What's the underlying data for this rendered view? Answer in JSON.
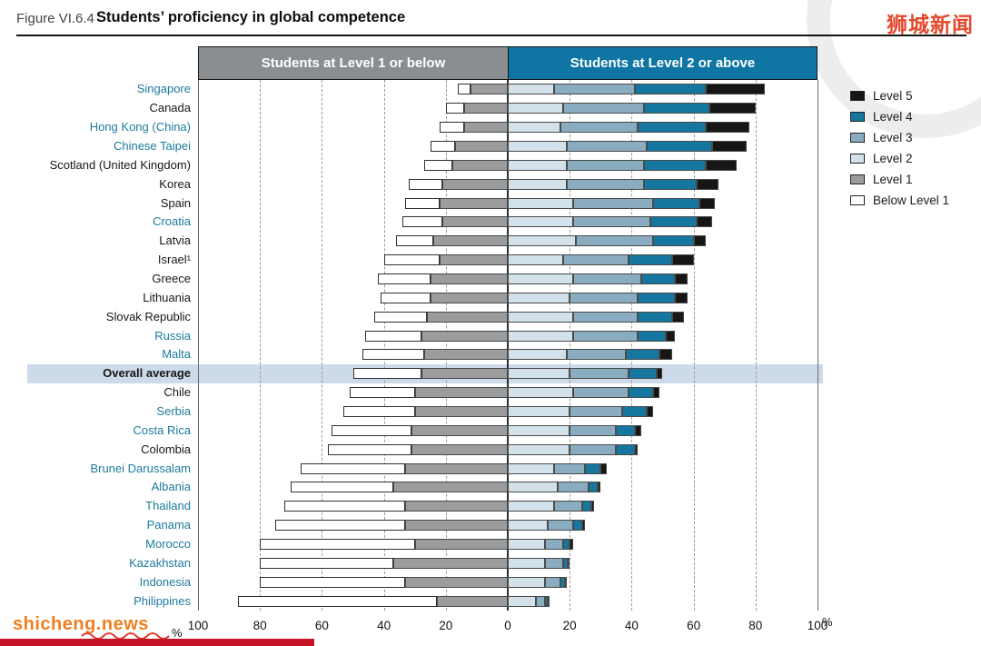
{
  "figure": {
    "label": "Figure VI.6.4",
    "title": "Students’ proficiency in global competence"
  },
  "headers": {
    "left": "Students at Level 1 or below",
    "right": "Students at Level 2 or above"
  },
  "legend": [
    {
      "label": "Level 5",
      "color_key": "level_5"
    },
    {
      "label": "Level 4",
      "color_key": "level_4"
    },
    {
      "label": "Level 3",
      "color_key": "level_3"
    },
    {
      "label": "Level 2",
      "color_key": "level_2"
    },
    {
      "label": "Level 1",
      "color_key": "level_1"
    },
    {
      "label": "Below Level 1",
      "color_key": "below_level_1"
    }
  ],
  "axis": {
    "ticks": [
      100,
      80,
      60,
      40,
      20,
      0,
      20,
      40,
      60,
      80,
      100
    ],
    "percent": "%",
    "range": [
      -100,
      100
    ]
  },
  "watermarks": {
    "top_right": "狮城新闻",
    "bottom_left": "shicheng.news"
  },
  "colors": {
    "level_5": "#161616",
    "level_4": "#15779f",
    "level_3": "#8aacc1",
    "level_2": "#d3e1eb",
    "level_1": "#9a9c9e",
    "below_level_1": "#ffffff",
    "header_left_bg": "#8b8e91",
    "header_right_bg": "#0f76a4",
    "accent_label": "#1c7b9c",
    "highlight_band": "#ccdae9",
    "watermark_red": "#e2492c",
    "watermark_orange": "#ef7f1f",
    "bottom_bar_red": "#c41425"
  },
  "chart_data": {
    "type": "bar",
    "stacked": true,
    "diverging": true,
    "unit": "%",
    "title": "Students’ proficiency in global competence",
    "xlabel": "%",
    "xlim": [
      -100,
      100
    ],
    "series_order": [
      "below_l1",
      "l1",
      "l2",
      "l3",
      "l4",
      "l5"
    ],
    "series_names": [
      "Below Level 1",
      "Level 1",
      "Level 2",
      "Level 3",
      "Level 4",
      "Level 5"
    ],
    "countries": [
      {
        "name": "Singapore",
        "accent": true,
        "below_l1": 4,
        "l1": 12,
        "l2": 15,
        "l3": 26,
        "l4": 23,
        "l5": 19
      },
      {
        "name": "Canada",
        "accent": false,
        "below_l1": 6,
        "l1": 14,
        "l2": 18,
        "l3": 26,
        "l4": 21,
        "l5": 15
      },
      {
        "name": "Hong Kong (China)",
        "accent": true,
        "below_l1": 8,
        "l1": 14,
        "l2": 17,
        "l3": 25,
        "l4": 22,
        "l5": 14
      },
      {
        "name": "Chinese Taipei",
        "accent": true,
        "below_l1": 8,
        "l1": 17,
        "l2": 19,
        "l3": 26,
        "l4": 21,
        "l5": 11
      },
      {
        "name": "Scotland (United Kingdom)",
        "accent": false,
        "below_l1": 9,
        "l1": 18,
        "l2": 19,
        "l3": 25,
        "l4": 20,
        "l5": 10
      },
      {
        "name": "Korea",
        "accent": false,
        "below_l1": 11,
        "l1": 21,
        "l2": 19,
        "l3": 25,
        "l4": 17,
        "l5": 7
      },
      {
        "name": "Spain",
        "accent": false,
        "below_l1": 11,
        "l1": 22,
        "l2": 21,
        "l3": 26,
        "l4": 15,
        "l5": 5
      },
      {
        "name": "Croatia",
        "accent": true,
        "below_l1": 13,
        "l1": 21,
        "l2": 21,
        "l3": 25,
        "l4": 15,
        "l5": 5
      },
      {
        "name": "Latvia",
        "accent": false,
        "below_l1": 12,
        "l1": 24,
        "l2": 22,
        "l3": 25,
        "l4": 13,
        "l5": 4
      },
      {
        "name": "Israel¹",
        "accent": false,
        "below_l1": 18,
        "l1": 22,
        "l2": 18,
        "l3": 21,
        "l4": 14,
        "l5": 7
      },
      {
        "name": "Greece",
        "accent": false,
        "below_l1": 17,
        "l1": 25,
        "l2": 21,
        "l3": 22,
        "l4": 11,
        "l5": 4
      },
      {
        "name": "Lithuania",
        "accent": false,
        "below_l1": 16,
        "l1": 25,
        "l2": 20,
        "l3": 22,
        "l4": 12,
        "l5": 4
      },
      {
        "name": "Slovak Republic",
        "accent": false,
        "below_l1": 17,
        "l1": 26,
        "l2": 21,
        "l3": 21,
        "l4": 11,
        "l5": 4
      },
      {
        "name": "Russia",
        "accent": true,
        "below_l1": 18,
        "l1": 28,
        "l2": 21,
        "l3": 21,
        "l4": 9,
        "l5": 3
      },
      {
        "name": "Malta",
        "accent": true,
        "below_l1": 20,
        "l1": 27,
        "l2": 19,
        "l3": 19,
        "l4": 11,
        "l5": 4
      },
      {
        "name": "Overall average",
        "accent": false,
        "bold": true,
        "highlight": true,
        "below_l1": 22,
        "l1": 28,
        "l2": 20,
        "l3": 19,
        "l4": 9,
        "l5": 2
      },
      {
        "name": "Chile",
        "accent": false,
        "below_l1": 21,
        "l1": 30,
        "l2": 21,
        "l3": 18,
        "l4": 8,
        "l5": 2
      },
      {
        "name": "Serbia",
        "accent": true,
        "below_l1": 23,
        "l1": 30,
        "l2": 20,
        "l3": 17,
        "l4": 8,
        "l5": 2
      },
      {
        "name": "Costa Rica",
        "accent": true,
        "below_l1": 26,
        "l1": 31,
        "l2": 20,
        "l3": 15,
        "l4": 6,
        "l5": 2
      },
      {
        "name": "Colombia",
        "accent": false,
        "below_l1": 27,
        "l1": 31,
        "l2": 20,
        "l3": 15,
        "l4": 6,
        "l5": 1
      },
      {
        "name": "Brunei Darussalam",
        "accent": true,
        "below_l1": 34,
        "l1": 33,
        "l2": 15,
        "l3": 10,
        "l4": 5,
        "l5": 2
      },
      {
        "name": "Albania",
        "accent": true,
        "below_l1": 33,
        "l1": 37,
        "l2": 16,
        "l3": 10,
        "l4": 3,
        "l5": 1
      },
      {
        "name": "Thailand",
        "accent": true,
        "below_l1": 39,
        "l1": 33,
        "l2": 15,
        "l3": 9,
        "l4": 3,
        "l5": 1
      },
      {
        "name": "Panama",
        "accent": true,
        "below_l1": 42,
        "l1": 33,
        "l2": 13,
        "l3": 8,
        "l4": 3,
        "l5": 1
      },
      {
        "name": "Morocco",
        "accent": true,
        "below_l1": 50,
        "l1": 30,
        "l2": 12,
        "l3": 6,
        "l4": 2,
        "l5": 1
      },
      {
        "name": "Kazakhstan",
        "accent": true,
        "below_l1": 43,
        "l1": 37,
        "l2": 12,
        "l3": 6,
        "l4": 1.5,
        "l5": 0.5
      },
      {
        "name": "Indonesia",
        "accent": true,
        "below_l1": 47,
        "l1": 33,
        "l2": 12,
        "l3": 5,
        "l4": 1.5,
        "l5": 0.5
      },
      {
        "name": "Philippines",
        "accent": true,
        "below_l1": 64,
        "l1": 23,
        "l2": 9,
        "l3": 3,
        "l4": 0.8,
        "l5": 0.2
      }
    ]
  }
}
